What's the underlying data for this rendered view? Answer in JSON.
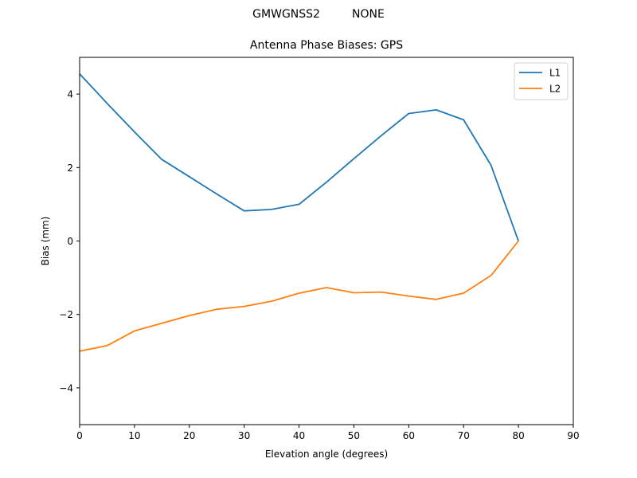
{
  "figure": {
    "suptitle": "GMWGNSS2         NONE",
    "title": "Antenna Phase Biases: GPS"
  },
  "chart_data": {
    "type": "line",
    "title": "Antenna Phase Biases: GPS",
    "suptitle": "GMWGNSS2         NONE",
    "xlabel": "Elevation angle (degrees)",
    "ylabel": "Bias (mm)",
    "xlim": [
      0,
      90
    ],
    "ylim": [
      -5,
      5
    ],
    "xticks": [
      0,
      10,
      20,
      30,
      40,
      50,
      60,
      70,
      80,
      90
    ],
    "yticks": [
      -4,
      -2,
      0,
      2,
      4
    ],
    "grid": false,
    "legend_position": "upper right",
    "x": [
      0,
      5,
      10,
      15,
      20,
      25,
      30,
      35,
      40,
      45,
      50,
      55,
      60,
      65,
      70,
      75,
      80
    ],
    "series": [
      {
        "name": "L1",
        "color": "#1f77b4",
        "values": [
          4.55,
          3.75,
          2.97,
          2.22,
          1.75,
          1.28,
          0.82,
          0.86,
          1.0,
          1.6,
          2.24,
          2.87,
          3.47,
          3.57,
          3.3,
          2.06,
          0.0
        ]
      },
      {
        "name": "L2",
        "color": "#ff7f0e",
        "values": [
          -3.0,
          -2.85,
          -2.45,
          -2.24,
          -2.03,
          -1.86,
          -1.78,
          -1.64,
          -1.42,
          -1.27,
          -1.41,
          -1.39,
          -1.5,
          -1.59,
          -1.42,
          -0.94,
          0.0
        ]
      }
    ]
  }
}
